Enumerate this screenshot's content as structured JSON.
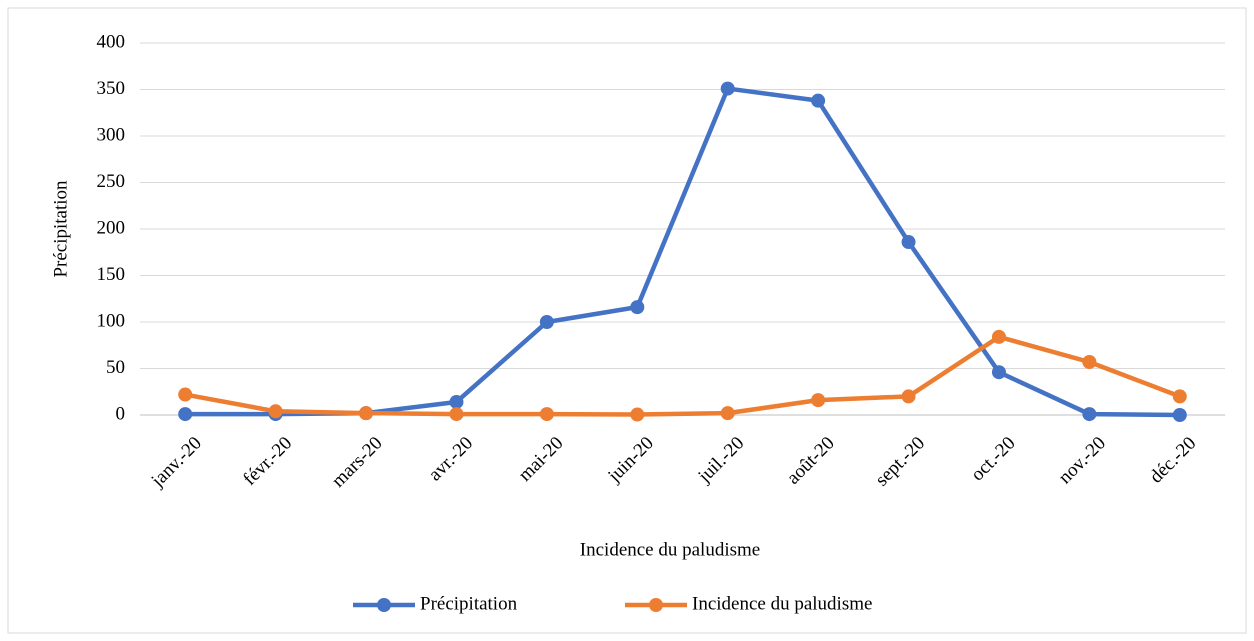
{
  "chart_data": {
    "type": "line",
    "x_label": "Incidence du paludisme",
    "y_label": "Précipitation",
    "categories": [
      "janv.-20",
      "févr.-20",
      "mars-20",
      "avr.-20",
      "mai-20",
      "juin-20",
      "juil.-20",
      "août-20",
      "sept.-20",
      "oct.-20",
      "nov.-20",
      "déc.-20"
    ],
    "series": [
      {
        "name": "Précipitation",
        "color": "#4472c4",
        "values": [
          1,
          1,
          2,
          14,
          100,
          116,
          351,
          338,
          186,
          46,
          1,
          0
        ]
      },
      {
        "name": "Incidence du paludisme",
        "color": "#ed7d31",
        "values": [
          22,
          4,
          2,
          1,
          1,
          0.5,
          2,
          16,
          20,
          84,
          57,
          20
        ]
      }
    ],
    "ylim": [
      0,
      400
    ],
    "yticks": [
      0,
      50,
      100,
      150,
      200,
      250,
      300,
      350,
      400
    ],
    "grid": true,
    "legend": "bottom"
  }
}
